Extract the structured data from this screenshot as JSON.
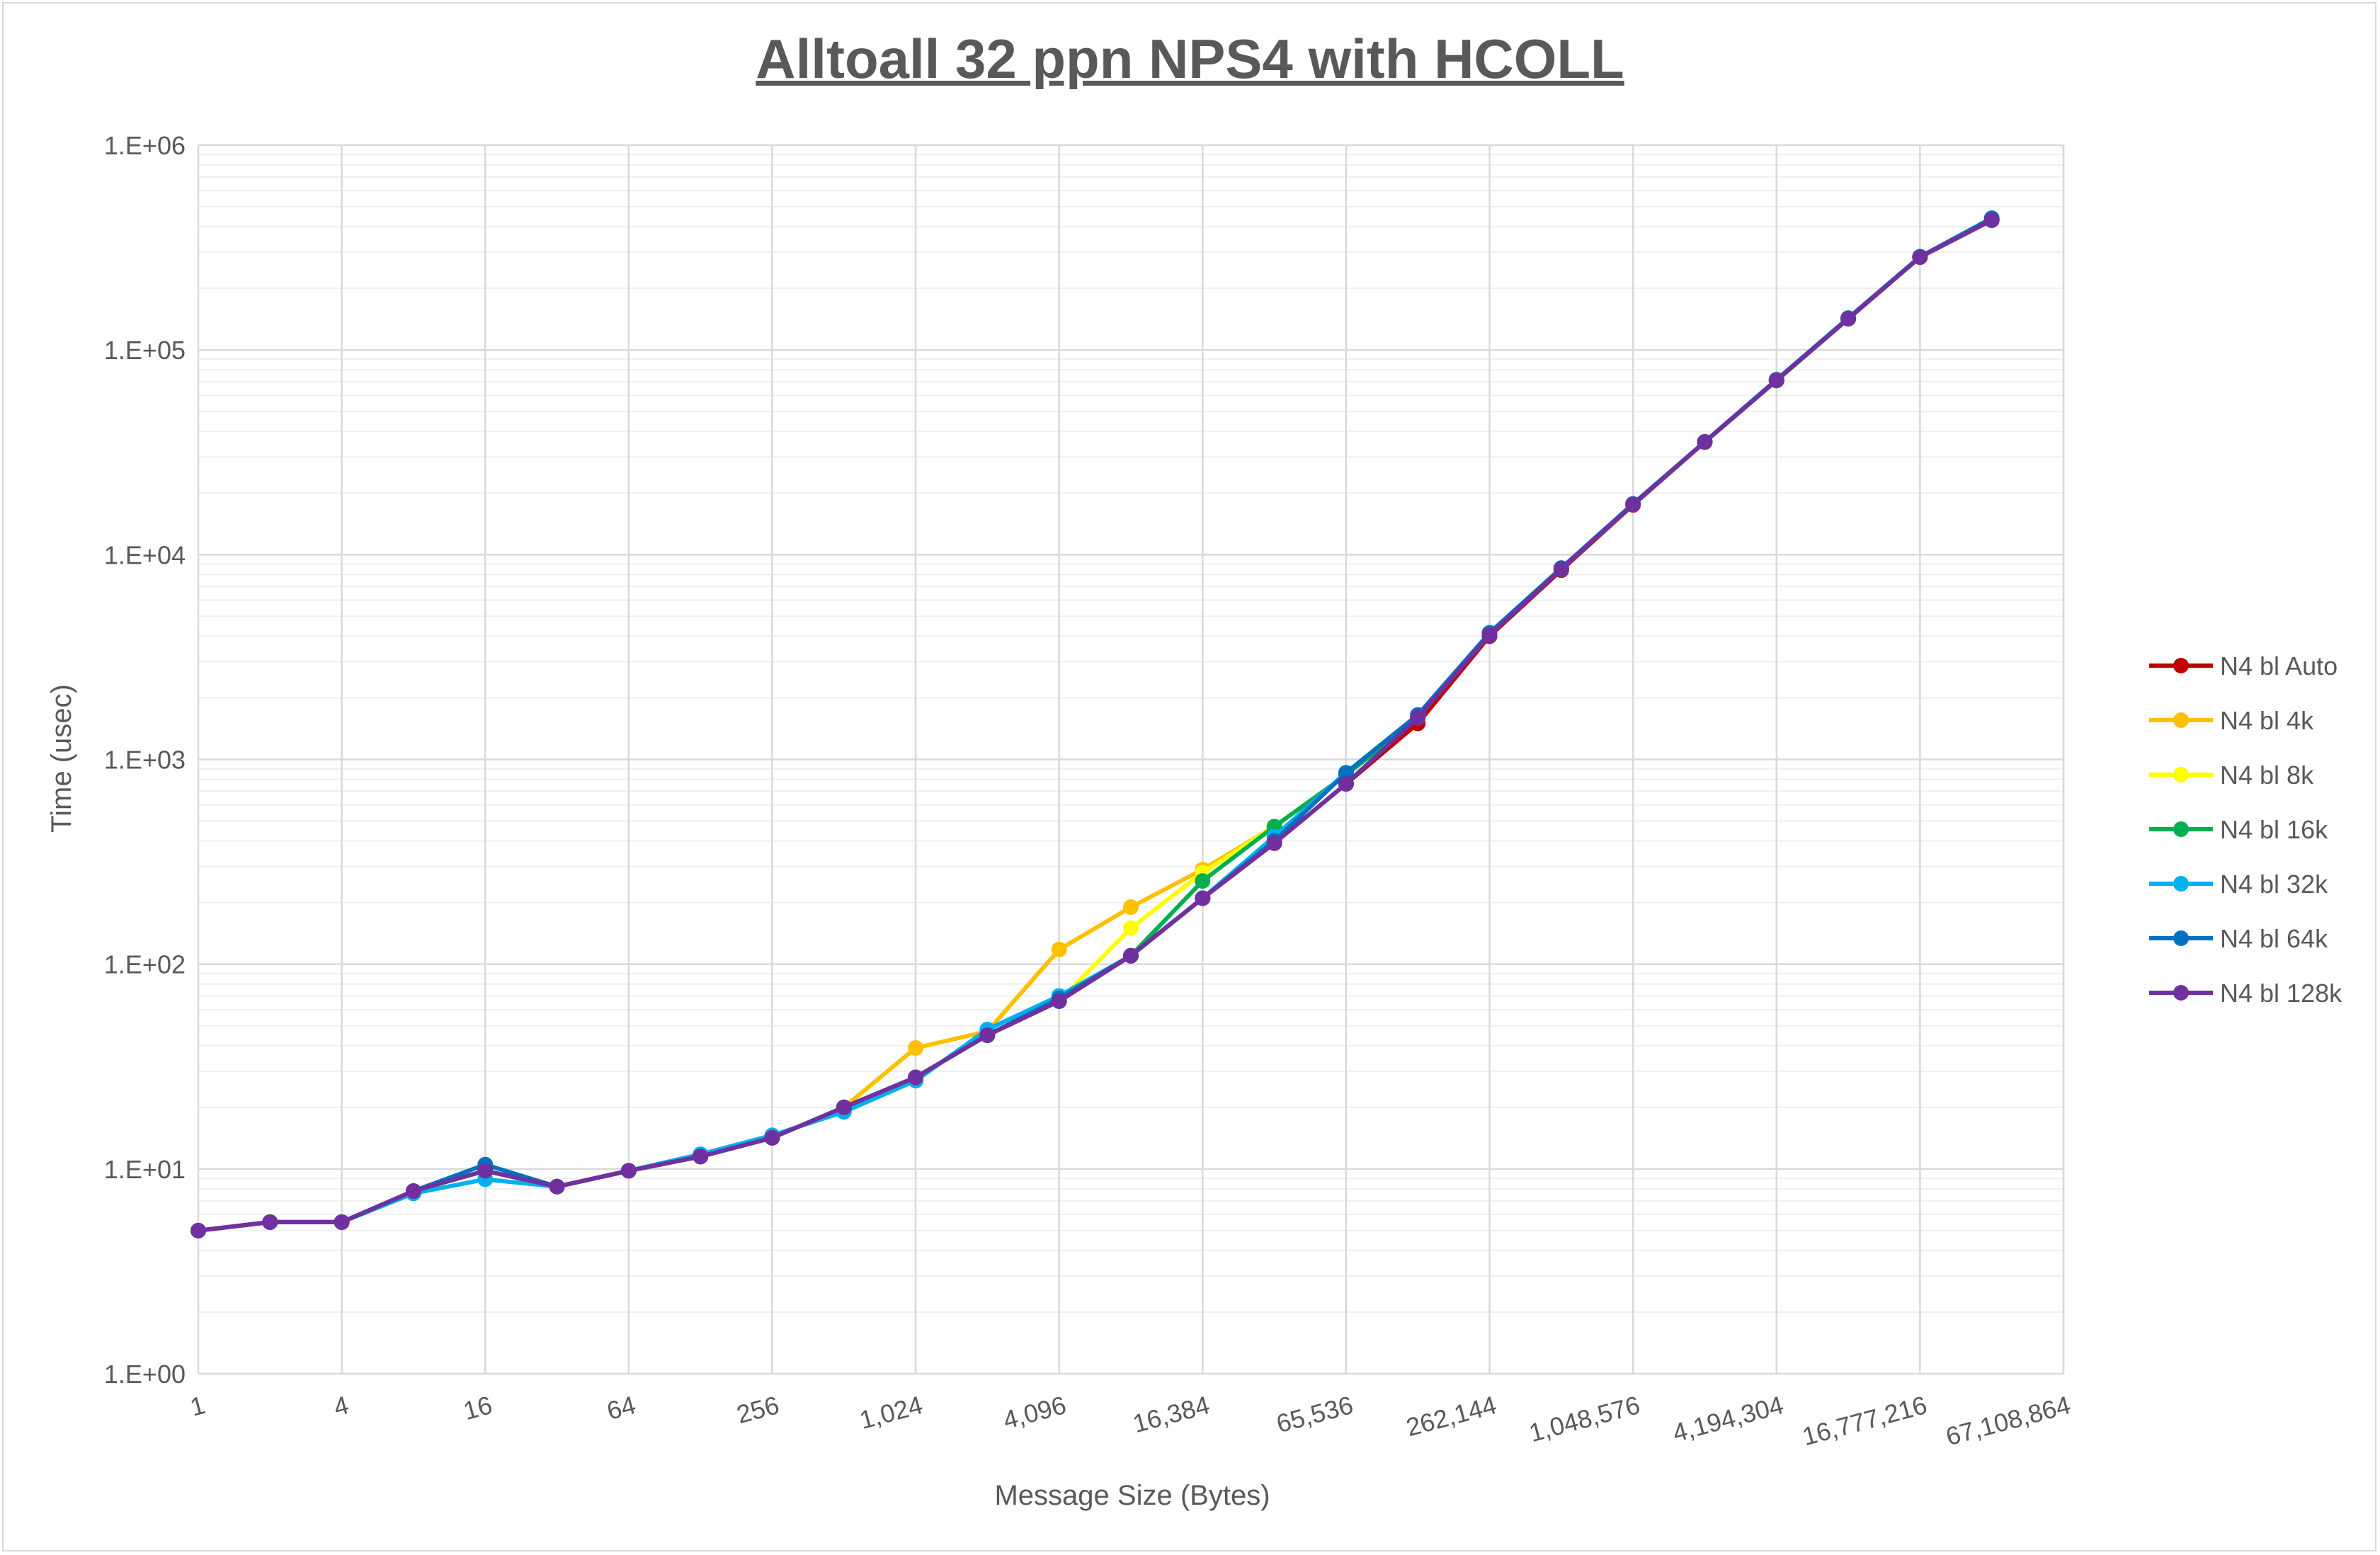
{
  "chart_data": {
    "type": "line",
    "title": "Alltoall 32 ppn NPS4 with HCOLL",
    "xlabel": "Message Size (Bytes)",
    "ylabel": "Time (usec)",
    "x_scale": "log2",
    "y_scale": "log10",
    "ylim": [
      1,
      1000000
    ],
    "grid": true,
    "legend_position": "right",
    "x": [
      1,
      2,
      4,
      8,
      16,
      32,
      64,
      128,
      256,
      512,
      1024,
      2048,
      4096,
      8192,
      16384,
      32768,
      65536,
      131072,
      262144,
      524288,
      1048576,
      2097152,
      4194304,
      8388608,
      16777216,
      33554432
    ],
    "x_tick_labels": [
      "1",
      "4",
      "16",
      "64",
      "256",
      "1,024",
      "4,096",
      "16,384",
      "65,536",
      "262,144",
      "1,048,576",
      "4,194,304",
      "16,777,216",
      "67,108,864"
    ],
    "y_tick_labels": [
      "1.E+00",
      "1.E+01",
      "1.E+02",
      "1.E+03",
      "1.E+04",
      "1.E+05",
      "1.E+06"
    ],
    "series": [
      {
        "name": "N4 bl Auto",
        "color": "#c00000",
        "values": [
          5.0,
          5.5,
          5.5,
          7.8,
          9.8,
          8.2,
          9.8,
          11.5,
          14.2,
          20,
          28,
          45,
          66,
          110,
          210,
          390,
          760,
          1500,
          4000,
          8400,
          17500,
          35500,
          71000,
          142000,
          284000,
          430000
        ]
      },
      {
        "name": "N4 bl 4k",
        "color": "#ffc000",
        "values": [
          5.0,
          5.5,
          5.5,
          7.8,
          9.8,
          8.2,
          9.8,
          11.5,
          14.2,
          20,
          39,
          47,
          118,
          190,
          290,
          470,
          840,
          1600,
          4100,
          8500,
          17600,
          35500,
          71000,
          142000,
          284000,
          430000
        ]
      },
      {
        "name": "N4 bl 8k",
        "color": "#ffff00",
        "values": [
          5.0,
          5.5,
          5.5,
          7.8,
          9.8,
          8.2,
          9.8,
          11.5,
          14.2,
          20,
          28,
          45,
          66,
          150,
          280,
          470,
          840,
          1600,
          4100,
          8500,
          17600,
          35500,
          71000,
          142000,
          284000,
          430000
        ]
      },
      {
        "name": "N4 bl 16k",
        "color": "#00b050",
        "values": [
          5.0,
          5.5,
          5.5,
          7.8,
          9.8,
          8.2,
          9.8,
          11.5,
          14.2,
          20,
          28,
          45,
          66,
          110,
          255,
          470,
          840,
          1600,
          4100,
          8500,
          17600,
          35500,
          71000,
          142000,
          284000,
          430000
        ]
      },
      {
        "name": "N4 bl 32k",
        "color": "#00b0f0",
        "values": [
          5.0,
          5.5,
          5.5,
          7.6,
          8.9,
          8.2,
          9.8,
          11.8,
          14.6,
          19,
          27,
          48,
          70,
          110,
          210,
          420,
          860,
          1650,
          4150,
          8600,
          17700,
          35600,
          71500,
          143000,
          285000,
          435000
        ]
      },
      {
        "name": "N4 bl 64k",
        "color": "#0070c0",
        "values": [
          5.0,
          5.5,
          5.5,
          7.8,
          10.5,
          8.2,
          9.8,
          11.5,
          14.2,
          20,
          28,
          45,
          68,
          110,
          210,
          400,
          860,
          1650,
          4150,
          8600,
          17700,
          35600,
          71500,
          143000,
          285000,
          440000
        ]
      },
      {
        "name": "N4 bl 128k",
        "color": "#7030a0",
        "values": [
          5.0,
          5.5,
          5.5,
          7.8,
          9.8,
          8.2,
          9.8,
          11.5,
          14.2,
          20,
          28,
          45,
          66,
          110,
          210,
          390,
          760,
          1600,
          4050,
          8500,
          17600,
          35500,
          71000,
          142000,
          284000,
          430000
        ]
      }
    ]
  }
}
